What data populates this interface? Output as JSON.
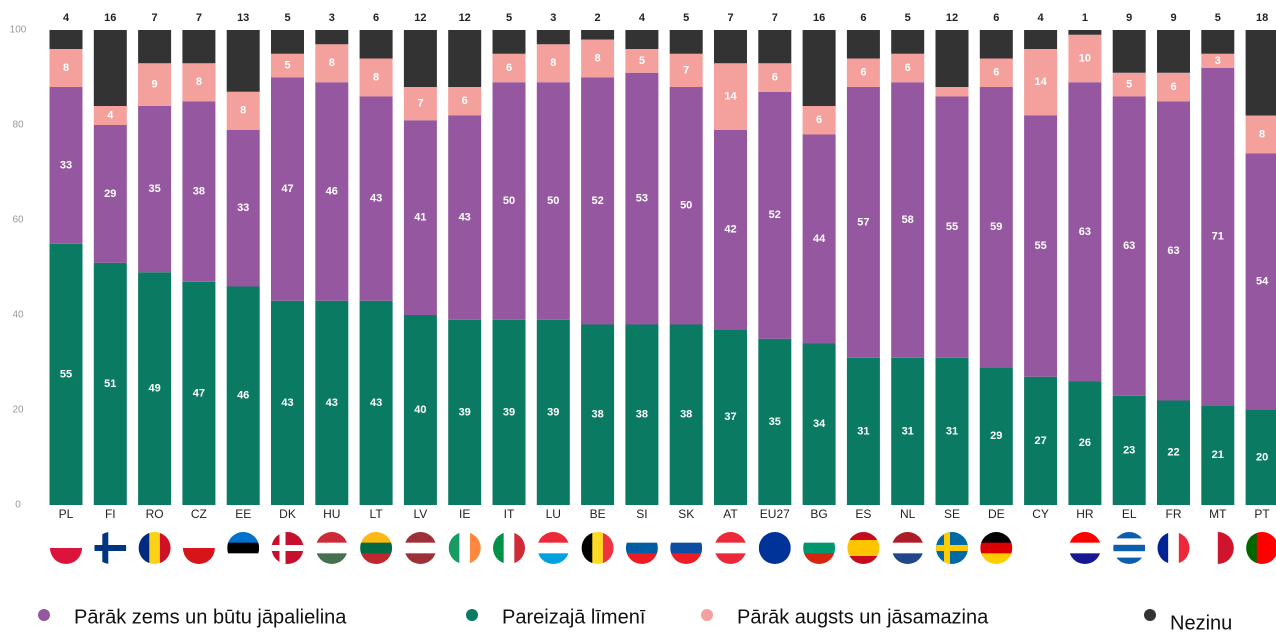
{
  "chart_data": {
    "type": "stacked_bar",
    "categories": [
      "PL",
      "FI",
      "RO",
      "CZ",
      "EE",
      "DK",
      "HU",
      "LT",
      "LV",
      "IE",
      "IT",
      "LU",
      "BE",
      "SI",
      "SK",
      "AT",
      "EU27",
      "BG",
      "ES",
      "NL",
      "SE",
      "DE",
      "CY",
      "HR",
      "EL",
      "FR",
      "MT",
      "PT"
    ],
    "ylim": [
      0,
      100
    ],
    "yticks": [
      0,
      20,
      40,
      60,
      80,
      100
    ],
    "grid": false,
    "legend_order": [
      1,
      0,
      2,
      3
    ],
    "series": [
      {
        "name": "Pareizajā līmenī",
        "color": "#0b7a63",
        "values": [
          55,
          51,
          49,
          47,
          46,
          43,
          43,
          43,
          40,
          39,
          39,
          39,
          38,
          38,
          38,
          37,
          35,
          34,
          31,
          31,
          31,
          29,
          27,
          26,
          23,
          22,
          21,
          20
        ]
      },
      {
        "name": "Pārāk zems un būtu jāpalielina",
        "color": "#9558a0",
        "values": [
          33,
          29,
          35,
          38,
          33,
          47,
          46,
          43,
          41,
          43,
          50,
          50,
          52,
          53,
          50,
          42,
          52,
          44,
          57,
          58,
          55,
          59,
          55,
          63,
          63,
          63,
          71,
          54
        ]
      },
      {
        "name": "Pārāk augsts un jāsamazina",
        "color": "#f4a09c",
        "values": [
          8,
          4,
          9,
          8,
          8,
          5,
          8,
          8,
          7,
          6,
          6,
          8,
          8,
          5,
          7,
          14,
          6,
          6,
          6,
          6,
          2,
          6,
          14,
          10,
          5,
          6,
          3,
          8
        ],
        "value_labels": [
          "8",
          "4",
          "9",
          "8",
          "8",
          "5",
          "8",
          "8",
          "7",
          "6",
          "6",
          "8",
          "8",
          "5",
          "7",
          "14",
          "6",
          "6",
          "6",
          "6",
          null,
          "6",
          "14",
          "10",
          "5",
          "6",
          "3",
          "8"
        ]
      },
      {
        "name": "Nezinu",
        "color": "#333333",
        "values": [
          4,
          16,
          7,
          7,
          13,
          5,
          3,
          6,
          12,
          12,
          5,
          3,
          2,
          4,
          5,
          7,
          7,
          16,
          6,
          5,
          12,
          6,
          4,
          1,
          9,
          9,
          5,
          18
        ]
      }
    ]
  }
}
